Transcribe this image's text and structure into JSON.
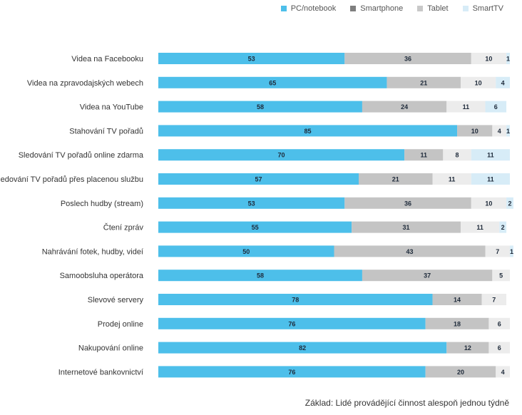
{
  "chart_data": {
    "type": "bar",
    "orientation": "horizontal",
    "stacked": true,
    "unit": "%",
    "xlim": [
      0,
      100
    ],
    "categories": [
      "Videa na Facebooku",
      "Videa na zpravodajských webech",
      "Videa na YouTube",
      "Stahování TV pořadů",
      "Sledování TV pořadů online zdarma",
      "Sledování TV pořadů přes placenou službu",
      "Poslech hudby (stream)",
      "Čtení zpráv",
      "Nahrávání fotek, hudby, videí",
      "Samoobsluha operátora",
      "Slevové servery",
      "Prodej online",
      "Nakupování online",
      "Internetové bankovnictví"
    ],
    "series": [
      {
        "name": "PC/notebook",
        "color": "#4dbfea",
        "values": [
          53,
          65,
          58,
          85,
          70,
          57,
          53,
          55,
          50,
          58,
          78,
          76,
          82,
          76
        ]
      },
      {
        "name": "Smartphone",
        "color": "#c4c4c4",
        "values": [
          36,
          21,
          24,
          10,
          11,
          21,
          36,
          31,
          43,
          37,
          14,
          18,
          12,
          20
        ]
      },
      {
        "name": "Tablet",
        "color": "#ececec",
        "values": [
          10,
          10,
          11,
          4,
          8,
          11,
          10,
          11,
          7,
          5,
          7,
          6,
          6,
          4
        ]
      },
      {
        "name": "SmartTV",
        "color": "#d7ecf7",
        "values": [
          1,
          4,
          6,
          1,
          11,
          11,
          2,
          2,
          1,
          null,
          null,
          null,
          null,
          null
        ]
      }
    ],
    "legend_position": "top-right",
    "legend_swatch_colors": [
      "#4dbfea",
      "#7f7f7f",
      "#c8c8c8",
      "#d7ecf7"
    ],
    "footnote": "Základ: Lidé provádějící činnost alespoň jednou týdně"
  }
}
